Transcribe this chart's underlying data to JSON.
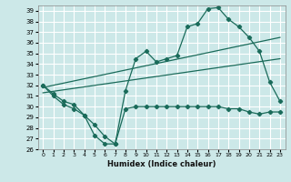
{
  "xlabel": "Humidex (Indice chaleur)",
  "bg_color": "#cce8e8",
  "grid_color": "#ffffff",
  "line_color": "#1a6b5a",
  "xlim": [
    -0.5,
    23.5
  ],
  "ylim": [
    26,
    39.5
  ],
  "yticks": [
    26,
    27,
    28,
    29,
    30,
    31,
    32,
    33,
    34,
    35,
    36,
    37,
    38,
    39
  ],
  "xticks": [
    0,
    1,
    2,
    3,
    4,
    5,
    6,
    7,
    8,
    9,
    10,
    11,
    12,
    13,
    14,
    15,
    16,
    17,
    18,
    19,
    20,
    21,
    22,
    23
  ],
  "series1_x": [
    0,
    1,
    2,
    3,
    4,
    5,
    6,
    7,
    8,
    9,
    10,
    11,
    12,
    13,
    14,
    15,
    16,
    17,
    18,
    19,
    20,
    21,
    22,
    23
  ],
  "series1_y": [
    32.0,
    31.2,
    30.5,
    30.2,
    29.2,
    27.3,
    26.5,
    26.5,
    31.5,
    34.5,
    35.2,
    34.2,
    34.5,
    34.8,
    37.5,
    37.8,
    39.2,
    39.3,
    38.2,
    37.5,
    36.5,
    35.2,
    32.3,
    30.5
  ],
  "series2_x": [
    0,
    1,
    2,
    3,
    4,
    5,
    6,
    7,
    8,
    9,
    10,
    11,
    12,
    13,
    14,
    15,
    16,
    17,
    18,
    19,
    20,
    21,
    22,
    23
  ],
  "series2_y": [
    32.0,
    31.0,
    30.2,
    29.8,
    29.2,
    28.3,
    27.2,
    26.5,
    29.8,
    30.0,
    30.0,
    30.0,
    30.0,
    30.0,
    30.0,
    30.0,
    30.0,
    30.0,
    29.8,
    29.8,
    29.5,
    29.3,
    29.5,
    29.5
  ],
  "trend1_x": [
    0,
    23
  ],
  "trend1_y": [
    31.8,
    36.5
  ],
  "trend2_x": [
    0,
    23
  ],
  "trend2_y": [
    31.3,
    34.5
  ]
}
